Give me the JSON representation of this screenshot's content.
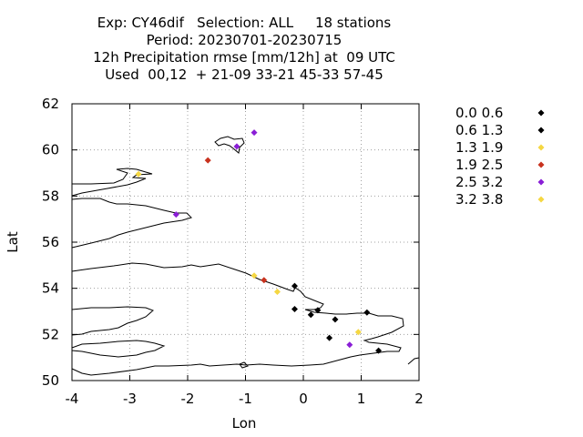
{
  "title_lines": [
    "Exp: CY46dif   Selection: ALL     18 stations",
    "Period: 20230701-20230715",
    "12h Precipitation rmse [mm/12h] at  09 UTC",
    "Used  00,12  + 21-09 33-21 45-33 57-45"
  ],
  "chart_data": {
    "type": "scatter",
    "xlabel": "Lon",
    "ylabel": "Lat",
    "xlim": [
      -4,
      2
    ],
    "ylim": [
      50,
      62
    ],
    "xticks": [
      -4,
      -3,
      -2,
      -1,
      0,
      1,
      2
    ],
    "yticks": [
      50,
      52,
      54,
      56,
      58,
      60,
      62
    ],
    "grid": true,
    "legend_position": "right",
    "legend": [
      {
        "label": "0.0 0.6",
        "color": "#000000"
      },
      {
        "label": "0.6 1.3",
        "color": "#000000"
      },
      {
        "label": "1.3 1.9",
        "color": "#f5d742"
      },
      {
        "label": "1.9 2.5",
        "color": "#c8321e"
      },
      {
        "label": "2.5 3.2",
        "color": "#8a1ed6"
      },
      {
        "label": "3.2 3.8",
        "color": "#f5d742"
      }
    ],
    "points": [
      {
        "lon": -0.85,
        "lat": 60.75,
        "cls": 4
      },
      {
        "lon": -1.15,
        "lat": 60.15,
        "cls": 4
      },
      {
        "lon": -1.65,
        "lat": 59.55,
        "cls": 3
      },
      {
        "lon": -2.85,
        "lat": 58.95,
        "cls": 2
      },
      {
        "lon": -2.2,
        "lat": 57.2,
        "cls": 4
      },
      {
        "lon": -0.85,
        "lat": 54.55,
        "cls": 2
      },
      {
        "lon": -0.68,
        "lat": 54.35,
        "cls": 3
      },
      {
        "lon": -0.45,
        "lat": 53.85,
        "cls": 2
      },
      {
        "lon": -0.15,
        "lat": 54.1,
        "cls": 0
      },
      {
        "lon": -0.15,
        "lat": 53.1,
        "cls": 0
      },
      {
        "lon": 0.13,
        "lat": 52.85,
        "cls": 1
      },
      {
        "lon": 0.25,
        "lat": 53.05,
        "cls": 0
      },
      {
        "lon": 0.55,
        "lat": 52.65,
        "cls": 0
      },
      {
        "lon": 1.1,
        "lat": 52.95,
        "cls": 1
      },
      {
        "lon": 0.45,
        "lat": 51.85,
        "cls": 0
      },
      {
        "lon": 0.95,
        "lat": 52.1,
        "cls": 5
      },
      {
        "lon": 0.8,
        "lat": 51.55,
        "cls": 4
      },
      {
        "lon": 1.3,
        "lat": 51.3,
        "cls": 0
      }
    ]
  }
}
